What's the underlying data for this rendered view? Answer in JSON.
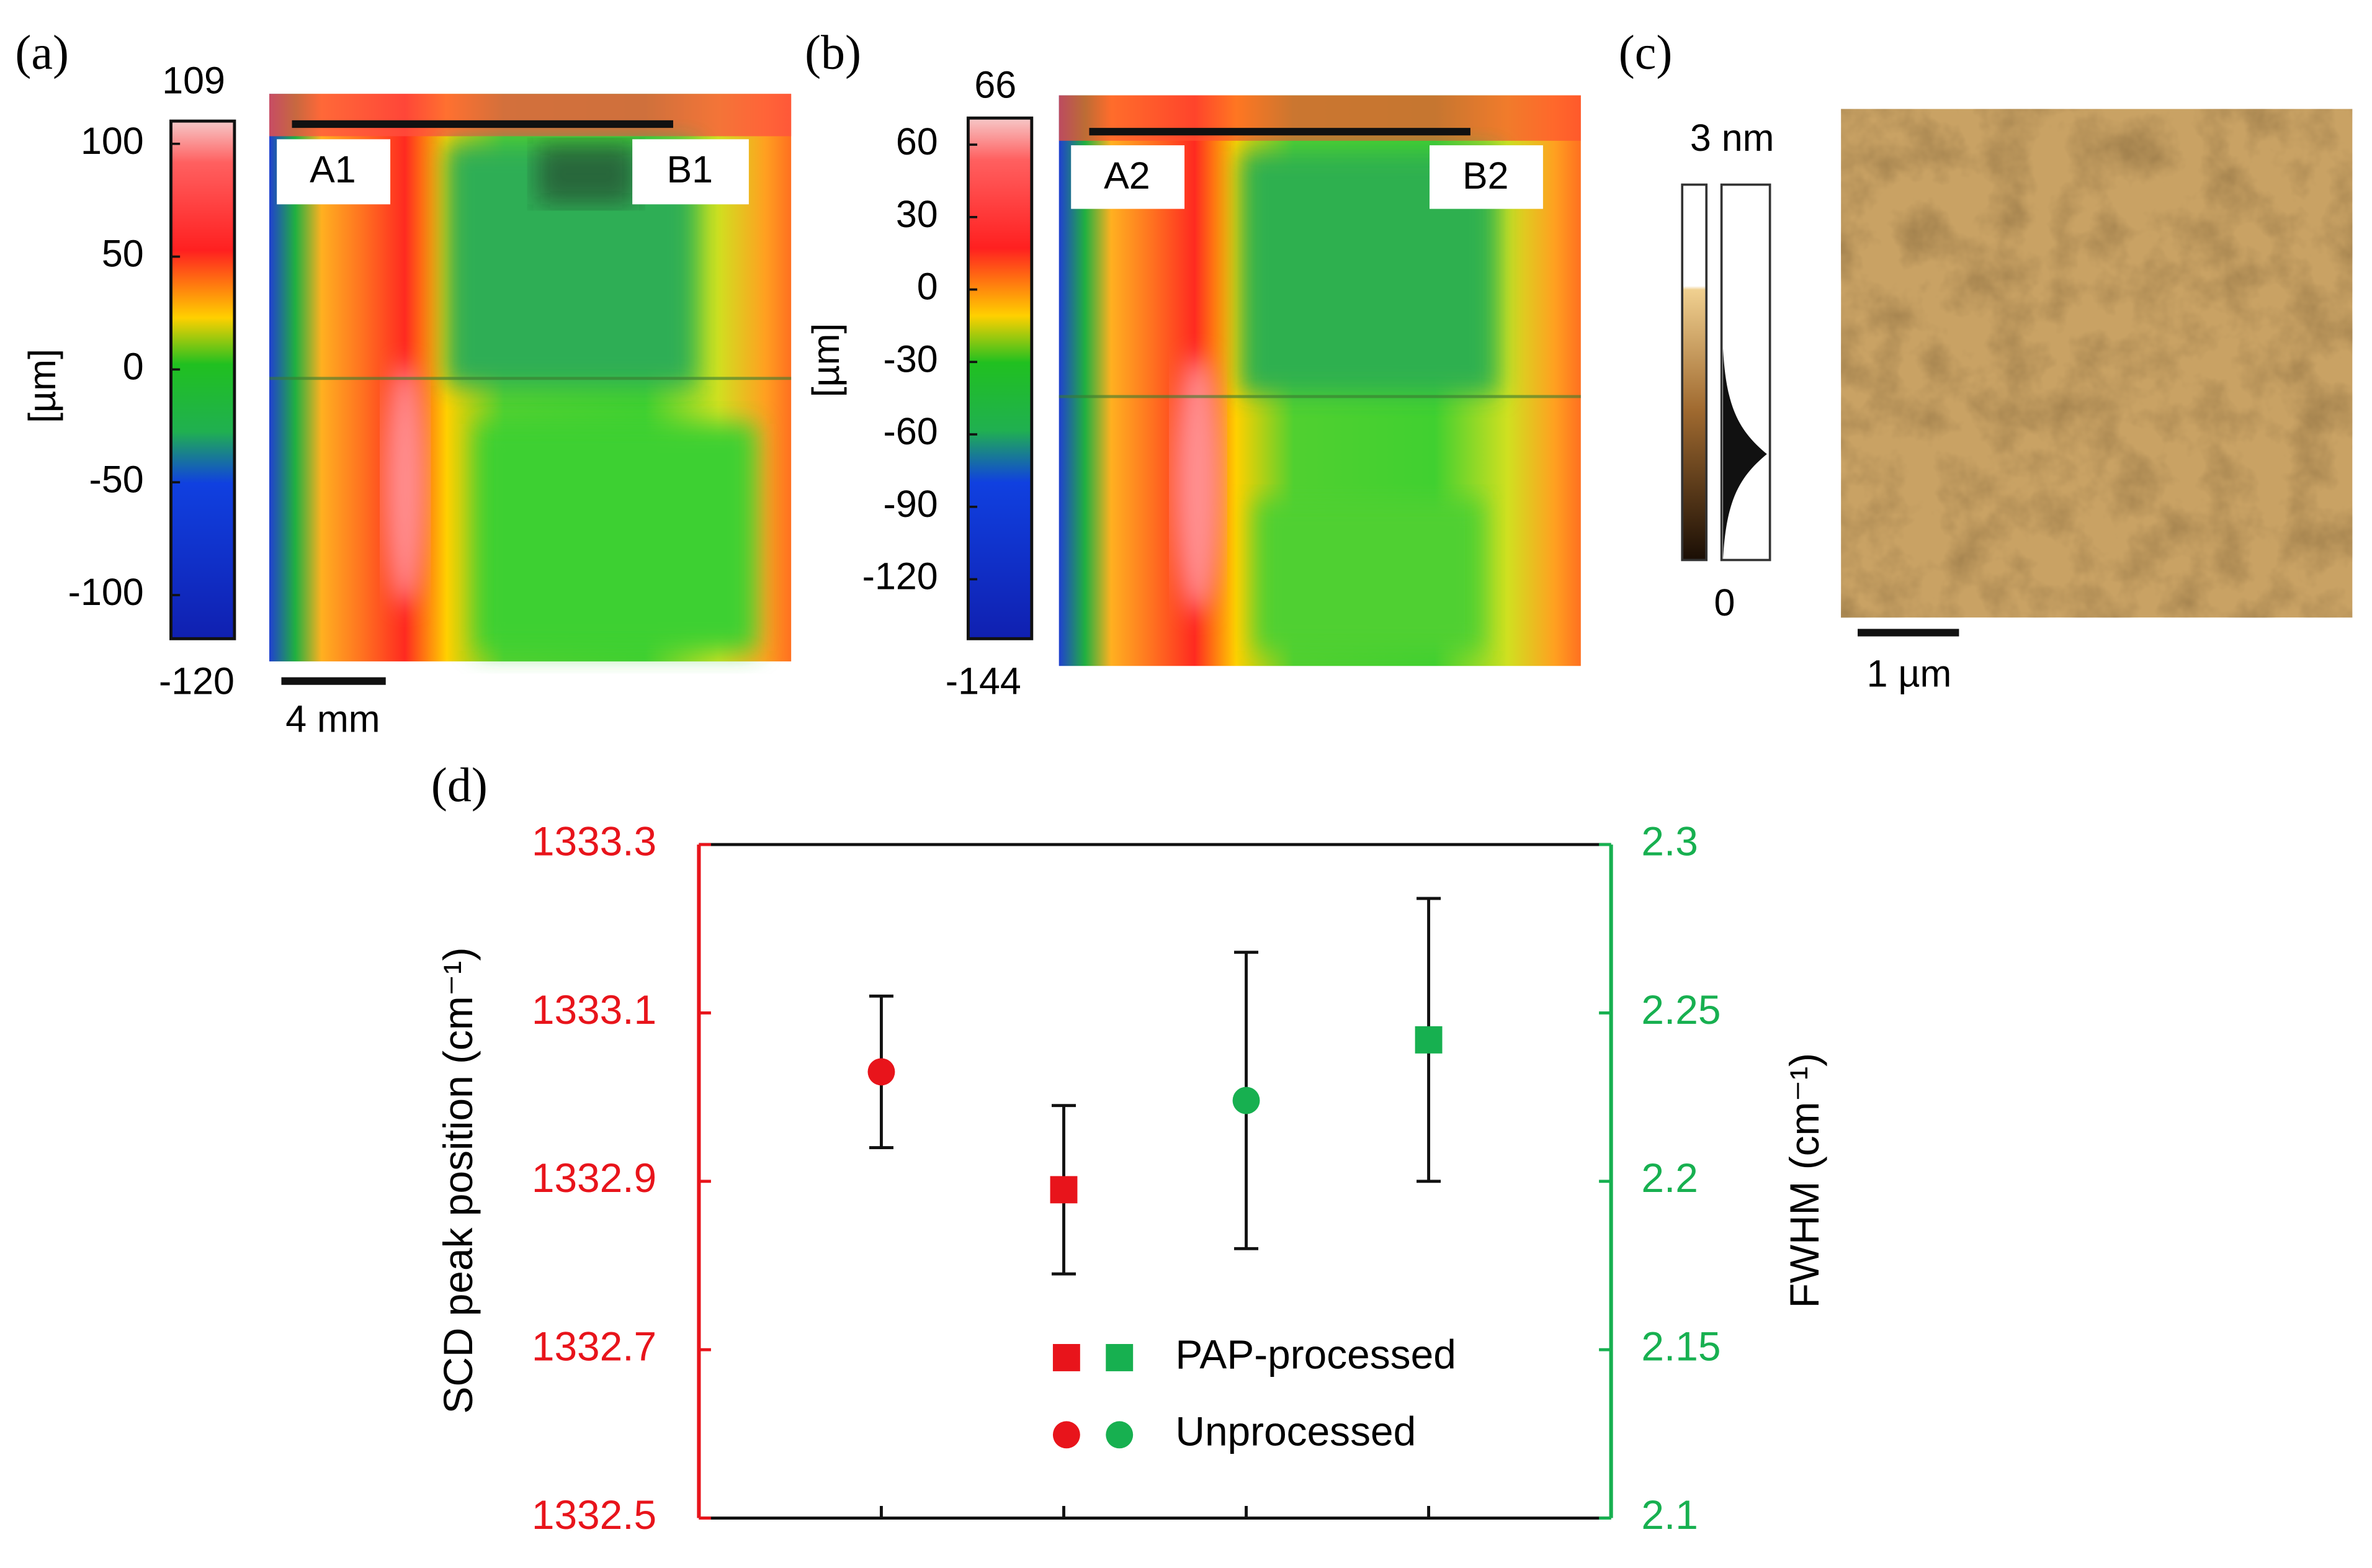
{
  "panels": [
    {
      "label": "(a)",
      "colorbar": {
        "lim": [
          -120,
          109
        ],
        "ticks": [
          -100,
          -50,
          0,
          50,
          100
        ]
      },
      "unit": "[µm]",
      "markers": [
        "A1",
        "B1"
      ],
      "scalebar": "4 mm"
    },
    {
      "label": "(b)",
      "colorbar": {
        "lim": [
          -144,
          66
        ],
        "ticks": [
          -120,
          -90,
          -60,
          -30,
          0,
          30,
          60
        ]
      },
      "unit": "[µm]",
      "markers": [
        "A2",
        "B2"
      ]
    },
    {
      "label": "(c)",
      "colorbar_top": "3 nm",
      "colorbar_bottom": 0,
      "scalebar": "1 µm"
    }
  ],
  "chart_data": {
    "type": "scatter",
    "panel_label": "(d)",
    "categories": [
      null,
      null,
      null,
      null
    ],
    "ylabel": "SCD peak position (cm⁻¹)",
    "y2label": "FWHM (cm⁻¹)",
    "ylim": [
      1332.5,
      1333.3
    ],
    "yticks": [
      1332.5,
      1332.7,
      1332.9,
      1333.1,
      1333.3
    ],
    "y2lim": [
      2.1,
      2.3
    ],
    "y2ticks": [
      2.1,
      2.15,
      2.2,
      2.25,
      2.3
    ],
    "yaxis_color": "#e8141b",
    "y2axis_color": "#17b050",
    "series": [
      {
        "marker": "circle",
        "color": "#e8141b",
        "values": [
          1333.03,
          null,
          null,
          null
        ],
        "errors": [
          0.09,
          null,
          null,
          null
        ]
      },
      {
        "marker": "square",
        "color": "#e8141b",
        "values": [
          null,
          1332.89,
          null,
          null
        ],
        "errors": [
          null,
          0.1,
          null,
          null
        ]
      },
      {
        "marker": "circle",
        "color": "#17b050",
        "axis": "y2",
        "values": [
          null,
          null,
          2.224,
          null
        ],
        "errors": [
          null,
          null,
          0.044,
          null
        ]
      },
      {
        "marker": "square",
        "color": "#17b050",
        "axis": "y2",
        "values": [
          null,
          null,
          null,
          2.242
        ],
        "errors": [
          null,
          null,
          null,
          0.042
        ]
      }
    ],
    "legend": {
      "position": "lower center",
      "entries": [
        {
          "label": "PAP-processed",
          "marker": "square"
        },
        {
          "label": "Unprocessed",
          "marker": "circle"
        }
      ]
    }
  }
}
